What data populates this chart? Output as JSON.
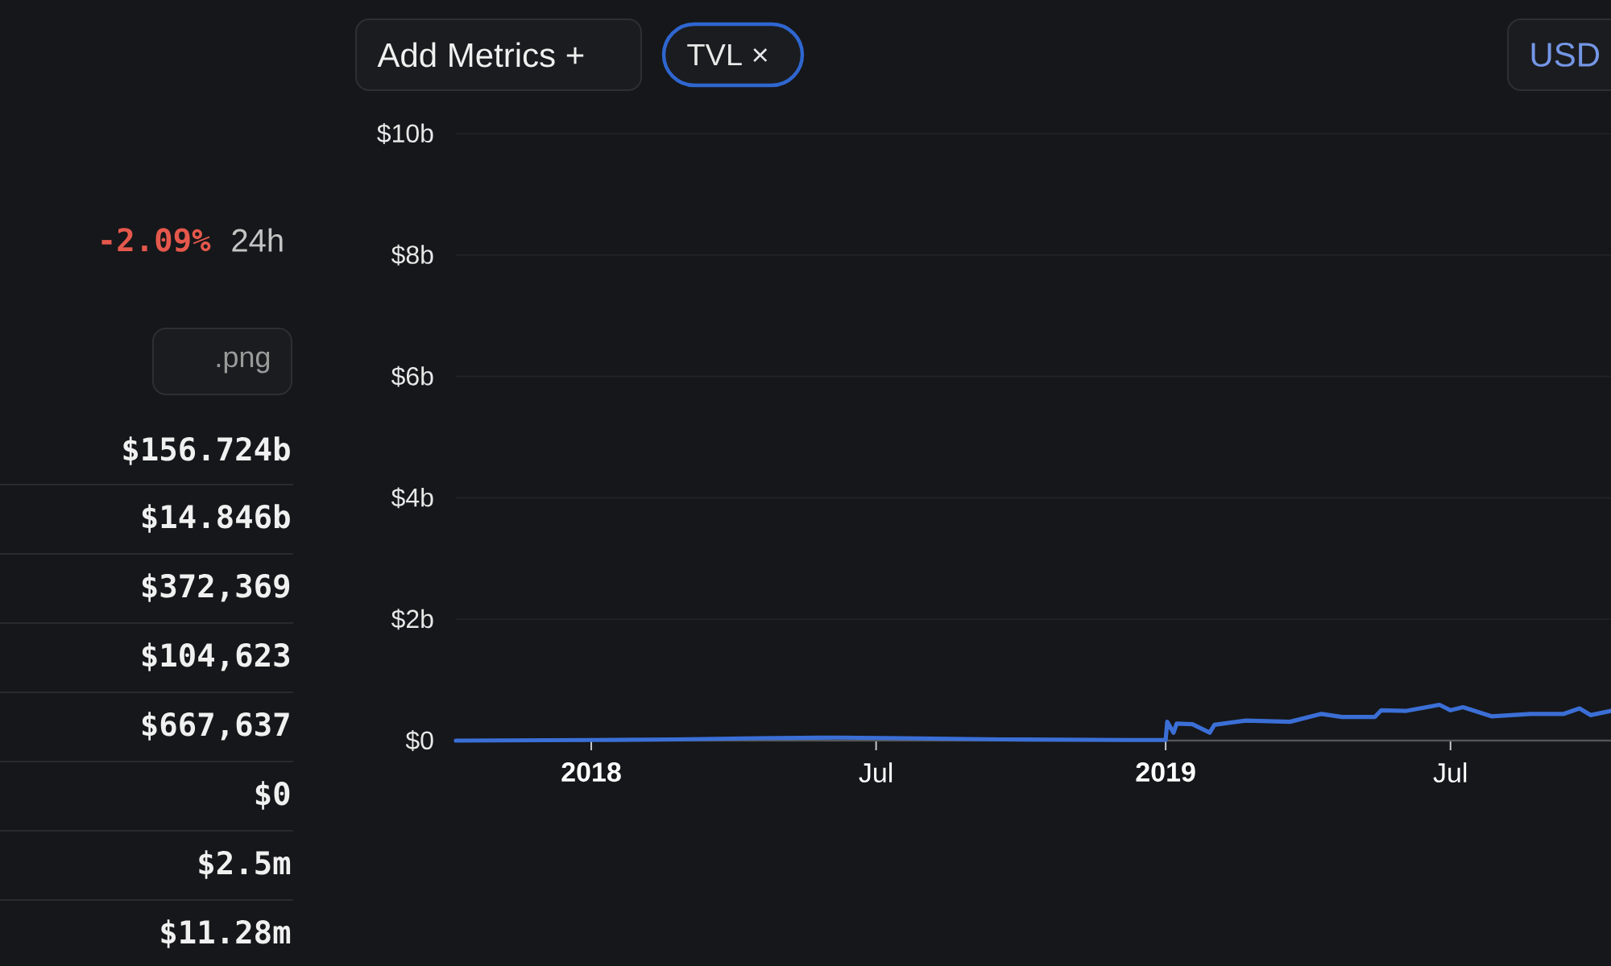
{
  "chart_data": {
    "type": "line",
    "x": [
      "2017-10-07",
      "2018-01-01",
      "2018-02-24",
      "2018-04-17",
      "2018-06-07",
      "2018-07-18",
      "2018-09-18",
      "2018-12-09",
      "2019-01-01",
      "2019-01-02",
      "2019-01-06",
      "2019-01-08",
      "2019-01-18",
      "2019-01-29",
      "2019-02-01",
      "2019-02-21",
      "2019-03-21",
      "2019-04-10",
      "2019-04-23",
      "2019-05-14",
      "2019-05-18",
      "2019-06-03",
      "2019-06-24",
      "2019-07-01",
      "2019-07-09",
      "2019-07-27",
      "2019-08-21",
      "2019-09-11",
      "2019-09-21",
      "2019-09-28",
      "2019-10-11"
    ],
    "values": [
      0,
      0.01,
      0.02,
      0.04,
      0.05,
      0.04,
      0.02,
      0.01,
      0.01,
      0.31,
      0.13,
      0.28,
      0.27,
      0.13,
      0.26,
      0.33,
      0.31,
      0.44,
      0.39,
      0.39,
      0.5,
      0.49,
      0.59,
      0.5,
      0.55,
      0.4,
      0.44,
      0.44,
      0.53,
      0.42,
      0.49
    ],
    "color": "#3b6fd6",
    "line_style": "solid",
    "marker": "none",
    "grid": "y",
    "xlim": [
      "2017-10-07",
      "2019-10-11"
    ],
    "xticks": [
      {
        "value": "2018-01-01",
        "label": "2018"
      },
      {
        "value": "2018-07-01",
        "label": "Jul"
      },
      {
        "value": "2019-01-01",
        "label": "2019"
      },
      {
        "value": "2019-07-01",
        "label": "Jul"
      }
    ],
    "ylim": [
      0,
      10
    ],
    "yticks": [
      {
        "value": 0,
        "label": "$0"
      },
      {
        "value": 2,
        "label": "$2b"
      },
      {
        "value": 4,
        "label": "$4b"
      },
      {
        "value": 6,
        "label": "$6b"
      },
      {
        "value": 8,
        "label": "$8b"
      },
      {
        "value": 10,
        "label": "$10b"
      }
    ],
    "annotations": [
      "-2.09%",
      "24h",
      ".png",
      "$156.724b",
      "$14.846b",
      "$372,369",
      "$104,623",
      "$667,637",
      "$0",
      "$2.5m",
      "$11.28m",
      "Add Metrics +",
      "TVL ×",
      "USD"
    ]
  }
}
